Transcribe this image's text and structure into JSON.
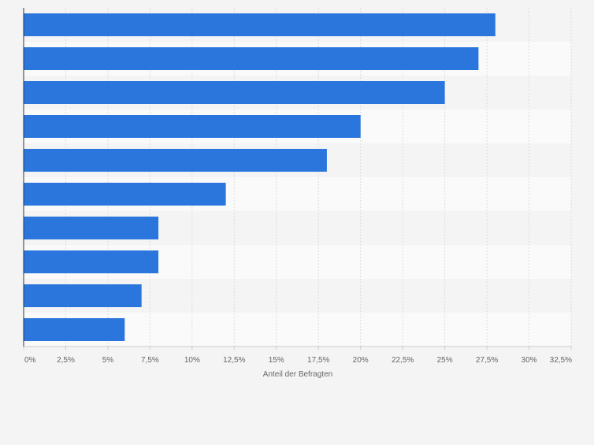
{
  "chart_data": {
    "type": "bar",
    "orientation": "horizontal",
    "categories": [
      "",
      "",
      "",
      "",
      "",
      "",
      "",
      "",
      "",
      ""
    ],
    "values": [
      28,
      27,
      25,
      20,
      18,
      12,
      8,
      8,
      7,
      6
    ],
    "title": "",
    "xlabel": "Anteil der Befragten",
    "ylabel": "",
    "xlim": [
      0,
      32.5
    ],
    "xticks": [
      0,
      2.5,
      5,
      7.5,
      10,
      12.5,
      15,
      17.5,
      20,
      22.5,
      25,
      27.5,
      30,
      32.5
    ],
    "xtick_labels": [
      "0%",
      "2,5%",
      "5%",
      "7,5%",
      "10%",
      "12,5%",
      "15%",
      "17,5%",
      "20%",
      "22,5%",
      "25%",
      "27,5%",
      "30%",
      "32,5%"
    ],
    "grid": true,
    "bar_color": "#2a76dd"
  }
}
